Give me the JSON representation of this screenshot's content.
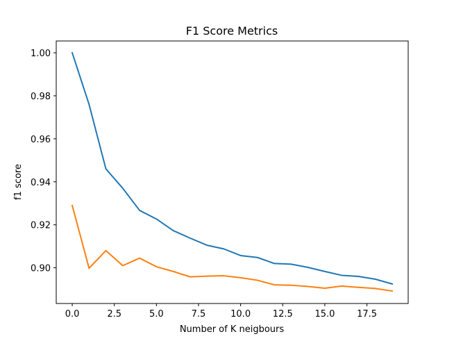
{
  "chart_data": {
    "type": "line",
    "title": "F1 Score Metrics",
    "xlabel": "Number of K neigbours",
    "ylabel": "f1 score",
    "xlim": [
      -0.95,
      19.95
    ],
    "ylim": [
      0.8834,
      1.0055
    ],
    "xticks": [
      0.0,
      2.5,
      5.0,
      7.5,
      10.0,
      12.5,
      15.0,
      17.5
    ],
    "xtick_labels": [
      "0.0",
      "2.5",
      "5.0",
      "7.5",
      "10.0",
      "12.5",
      "15.0",
      "17.5"
    ],
    "yticks": [
      0.9,
      0.92,
      0.94,
      0.96,
      0.98,
      1.0
    ],
    "ytick_labels": [
      "0.90",
      "0.92",
      "0.94",
      "0.96",
      "0.98",
      "1.00"
    ],
    "grid": false,
    "legend": "none",
    "x": [
      0,
      1,
      2,
      3,
      4,
      5,
      6,
      7,
      8,
      9,
      10,
      11,
      12,
      13,
      14,
      15,
      16,
      17,
      18,
      19
    ],
    "series": [
      {
        "color": "#1f77b4",
        "values": [
          1.0,
          0.976,
          0.946,
          0.937,
          0.9267,
          0.9227,
          0.9173,
          0.9138,
          0.9105,
          0.9088,
          0.9057,
          0.9048,
          0.902,
          0.9017,
          0.9002,
          0.8983,
          0.8965,
          0.896,
          0.8947,
          0.8925
        ]
      },
      {
        "color": "#ff7f0e",
        "values": [
          0.929,
          0.8998,
          0.908,
          0.901,
          0.9045,
          0.9005,
          0.8983,
          0.8958,
          0.8961,
          0.8963,
          0.8954,
          0.8942,
          0.8921,
          0.8919,
          0.8913,
          0.8905,
          0.8915,
          0.8909,
          0.8904,
          0.8892
        ]
      }
    ]
  }
}
